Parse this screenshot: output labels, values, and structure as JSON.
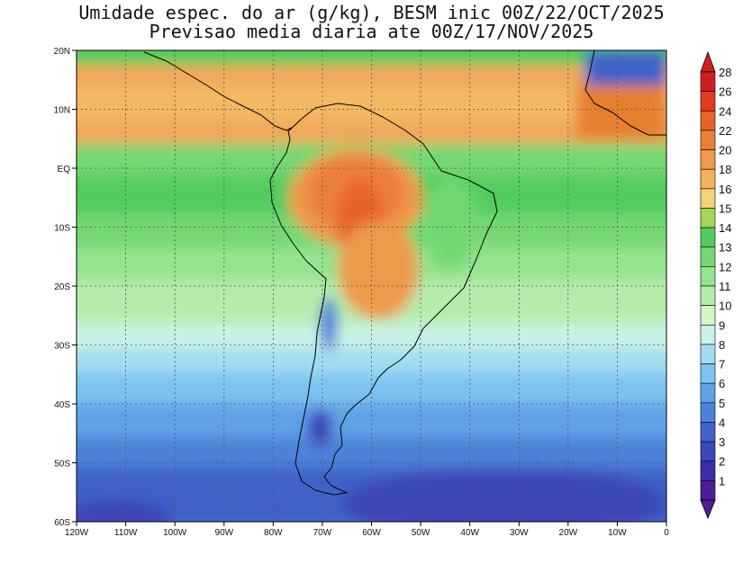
{
  "title_line1": "Umidade espec. do ar (g/kg), BESM inic 00Z/22/OCT/2025",
  "title_line2": "Previsao media diaria ate 00Z/17/NOV/2025",
  "lat_ticks": [
    "20N",
    "10N",
    "EQ",
    "10S",
    "20S",
    "30S",
    "40S",
    "50S",
    "60S"
  ],
  "lon_ticks": [
    "120W",
    "110W",
    "100W",
    "90W",
    "80W",
    "70W",
    "60W",
    "50W",
    "40W",
    "30W",
    "20W",
    "10W",
    "0"
  ],
  "colorbar": {
    "levels": [
      "1",
      "2",
      "3",
      "4",
      "5",
      "6",
      "7",
      "8",
      "9",
      "10",
      "11",
      "12",
      "13",
      "14",
      "15",
      "16",
      "18",
      "20",
      "22",
      "24",
      "26",
      "28"
    ],
    "colors": [
      "#4b1f96",
      "#3a2ea8",
      "#3c47b8",
      "#4062c8",
      "#4d82d8",
      "#5ea3e6",
      "#7cc4f0",
      "#a3dcf0",
      "#c8f2e6",
      "#d5f5c6",
      "#b6ecab",
      "#96e38f",
      "#73d873",
      "#52cc5e",
      "#a5d456",
      "#f4d27a",
      "#f1b45a",
      "#ee9a4c",
      "#ec7e3a",
      "#e8602a",
      "#e03c1e",
      "#cf1f1f"
    ]
  }
}
